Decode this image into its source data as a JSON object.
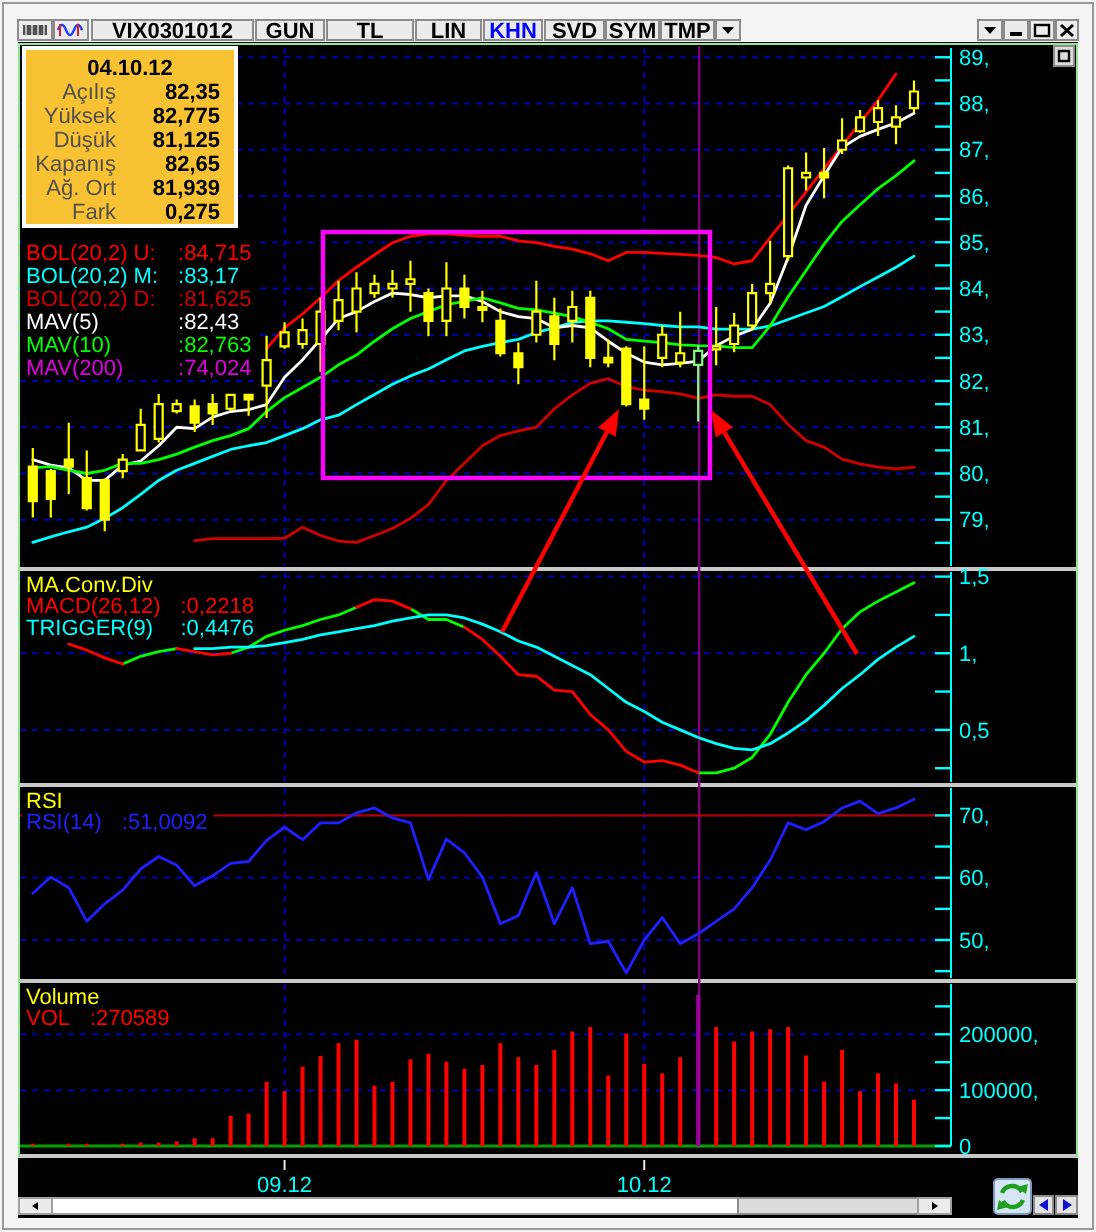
{
  "chart_data": [
    {
      "type": "candlestick",
      "title": "VIX0301012",
      "categories": [
        null,
        null,
        null,
        null,
        null,
        null,
        null,
        null,
        null,
        null,
        null,
        null,
        null,
        null,
        "09.12",
        null,
        null,
        null,
        null,
        null,
        null,
        null,
        null,
        null,
        null,
        null,
        null,
        null,
        null,
        null,
        null,
        null,
        null,
        null,
        "10.12",
        null,
        null,
        null,
        null,
        null,
        null,
        null,
        null,
        null,
        null,
        null,
        null,
        null,
        null,
        null
      ],
      "ylim": [
        78,
        89.2
      ],
      "yticks": [
        {
          "value": 78.5,
          "label": null
        },
        {
          "value": 79,
          "label": "79,"
        },
        {
          "value": 79.5,
          "label": null
        },
        {
          "value": 80,
          "label": "80,"
        },
        {
          "value": 80.5,
          "label": null
        },
        {
          "value": 81,
          "label": "81,"
        },
        {
          "value": 81.5,
          "label": null
        },
        {
          "value": 82,
          "label": "82,"
        },
        {
          "value": 82.5,
          "label": null
        },
        {
          "value": 83,
          "label": "83,"
        },
        {
          "value": 83.5,
          "label": null
        },
        {
          "value": 84,
          "label": "84,"
        },
        {
          "value": 84.5,
          "label": null
        },
        {
          "value": 85,
          "label": "85,"
        },
        {
          "value": 85.5,
          "label": null
        },
        {
          "value": 86,
          "label": "86,"
        },
        {
          "value": 86.5,
          "label": null
        },
        {
          "value": 87,
          "label": "87,"
        },
        {
          "value": 87.5,
          "label": null
        },
        {
          "value": 88,
          "label": "88,"
        },
        {
          "value": 88.5,
          "label": null
        },
        {
          "value": 89,
          "label": "89,"
        }
      ],
      "tick_labels": "y",
      "grid": true,
      "legend": "top left",
      "ohlc": [
        [
          80.15,
          80.55,
          79.05,
          79.4
        ],
        [
          80.05,
          80.1,
          79.05,
          79.45
        ],
        [
          80.3,
          81.1,
          79.55,
          80.15
        ],
        [
          79.9,
          80.5,
          79.2,
          79.25
        ],
        [
          79.85,
          79.9,
          78.75,
          79.0
        ],
        [
          80.05,
          80.42,
          79.9,
          80.3
        ],
        [
          80.5,
          81.4,
          80.5,
          81.05
        ],
        [
          80.75,
          81.72,
          80.67,
          81.5
        ],
        [
          81.35,
          81.6,
          81.3,
          81.5
        ],
        [
          81.45,
          81.6,
          80.9,
          81.1
        ],
        [
          81.5,
          81.72,
          81.05,
          81.3
        ],
        [
          81.4,
          81.72,
          81.35,
          81.7
        ],
        [
          81.7,
          81.72,
          81.25,
          81.6
        ],
        [
          81.9,
          82.98,
          81.2,
          82.45
        ],
        [
          82.75,
          83.27,
          82.7,
          83.05
        ],
        [
          82.8,
          83.35,
          82.7,
          83.1
        ],
        [
          82.8,
          83.8,
          82.2,
          83.5
        ],
        [
          83.3,
          84.17,
          83.1,
          83.75
        ],
        [
          83.5,
          84.35,
          83.05,
          84.0
        ],
        [
          83.9,
          84.3,
          83.8,
          84.1
        ],
        [
          84.0,
          84.4,
          83.8,
          84.1
        ],
        [
          84.1,
          84.6,
          83.5,
          84.2
        ],
        [
          83.9,
          84.0,
          82.97,
          83.3
        ],
        [
          83.3,
          84.57,
          82.97,
          84.0
        ],
        [
          84.0,
          84.3,
          83.35,
          83.6
        ],
        [
          83.6,
          83.95,
          83.27,
          83.55
        ],
        [
          83.3,
          83.57,
          82.53,
          82.6
        ],
        [
          82.6,
          82.83,
          81.93,
          82.3
        ],
        [
          83.0,
          84.17,
          82.83,
          83.5
        ],
        [
          83.4,
          83.8,
          82.45,
          82.8
        ],
        [
          83.3,
          83.95,
          82.83,
          83.6
        ],
        [
          83.8,
          83.95,
          82.3,
          82.5
        ],
        [
          82.5,
          82.9,
          82.3,
          82.4
        ],
        [
          82.7,
          82.75,
          81.45,
          81.5
        ],
        [
          81.6,
          82.75,
          81.16,
          81.4
        ],
        [
          82.5,
          83.2,
          82.3,
          83.0
        ],
        [
          82.4,
          83.5,
          82.3,
          82.6
        ],
        [
          82.35,
          82.775,
          81.125,
          82.65
        ],
        [
          82.7,
          83.6,
          82.34,
          82.75
        ],
        [
          82.8,
          83.47,
          82.62,
          83.2
        ],
        [
          83.2,
          84.1,
          83.1,
          83.9
        ],
        [
          83.9,
          85.03,
          83.68,
          84.1
        ],
        [
          84.7,
          86.66,
          84.6,
          86.6
        ],
        [
          86.4,
          86.94,
          86.12,
          86.5
        ],
        [
          86.5,
          87.04,
          85.95,
          86.4
        ],
        [
          87.0,
          87.68,
          86.91,
          87.2
        ],
        [
          87.4,
          87.86,
          87.37,
          87.7
        ],
        [
          87.6,
          88.07,
          87.3,
          87.9
        ],
        [
          87.5,
          87.96,
          87.12,
          87.7
        ],
        [
          87.9,
          88.5,
          87.8,
          88.26
        ]
      ],
      "colors": [
        "#ffff00",
        "#ffff00",
        "#ffff00",
        "#ffff00",
        "#ffff00",
        "#ffff00",
        "#ffff00",
        "#ffff00",
        "#ffff00",
        "#ffff00",
        "#ffff00",
        "#ffff00",
        "#ffff00",
        "#ffff00",
        "#ffff00",
        "#ffff00",
        "#ffff00",
        "#ffff00",
        "#ffff00",
        "#ffff00",
        "#ffff00",
        "#ffff00",
        "#ffff00",
        "#ffff00",
        "#ffff00",
        "#ffff00",
        "#ffff00",
        "#ffff00",
        "#ffff00",
        "#ffff00",
        "#ffff00",
        "#ffff00",
        "#ffff00",
        "#ffff00",
        "#ffff00",
        "#ffff00",
        "#ffff00",
        "#80ff80",
        "#ffff00",
        "#ffff00",
        "#ffff00",
        "#ffff00",
        "#ffff00",
        "#ffff00",
        "#ffff00",
        "#ffff00",
        "#ffff00",
        "#ffff00",
        "#ffff00",
        "#ffff00"
      ],
      "series": [
        {
          "type": "line",
          "name": "BOL(20,2) U:",
          "color": "#ff0000",
          "values": [
            null,
            null,
            null,
            null,
            null,
            null,
            null,
            null,
            null,
            null,
            null,
            null,
            null,
            82.7,
            83.15,
            83.45,
            83.8,
            84.17,
            84.46,
            84.73,
            84.99,
            85.13,
            85.18,
            85.18,
            85.15,
            85.13,
            85.13,
            85.03,
            84.99,
            84.91,
            84.85,
            84.75,
            84.6,
            84.78,
            84.78,
            84.76,
            84.74,
            84.715,
            84.67,
            84.53,
            84.6,
            85.1,
            85.59,
            86.09,
            86.59,
            87.08,
            87.58,
            88.07,
            88.64,
            null
          ]
        },
        {
          "type": "line",
          "name": "BOL(20,2) M:",
          "color": "#00ffff",
          "values": [
            78.51,
            78.63,
            78.74,
            78.84,
            79.03,
            79.26,
            79.55,
            79.85,
            80.07,
            80.22,
            80.37,
            80.52,
            80.6,
            80.67,
            80.82,
            80.97,
            81.16,
            81.26,
            81.49,
            81.71,
            81.93,
            82.11,
            82.26,
            82.46,
            82.65,
            82.75,
            82.83,
            82.9,
            83.05,
            83.15,
            83.27,
            83.3,
            83.3,
            83.27,
            83.24,
            83.2,
            83.17,
            83.17,
            83.12,
            83.12,
            83.12,
            83.19,
            83.33,
            83.47,
            83.61,
            83.82,
            84.04,
            84.25,
            84.46,
            84.7
          ]
        },
        {
          "type": "line",
          "name": "BOL(20,2) D:",
          "color": "#d00000",
          "values": [
            null,
            null,
            null,
            null,
            null,
            null,
            null,
            null,
            null,
            78.55,
            78.59,
            78.59,
            78.59,
            78.59,
            78.6,
            78.84,
            78.66,
            78.54,
            78.51,
            78.66,
            78.81,
            79.03,
            79.33,
            79.85,
            80.22,
            80.6,
            80.82,
            80.92,
            81.0,
            81.4,
            81.7,
            81.95,
            82.05,
            81.88,
            81.8,
            81.77,
            81.72,
            81.625,
            81.7,
            81.67,
            81.67,
            81.49,
            81.06,
            80.71,
            80.57,
            80.31,
            80.21,
            80.14,
            80.1,
            80.14
          ]
        },
        {
          "type": "line",
          "name": "MAV(5)",
          "color": "#ffffff",
          "values": [
            80.3,
            80.18,
            80.12,
            79.85,
            79.85,
            80.18,
            80.27,
            80.6,
            81.0,
            80.97,
            81.22,
            81.34,
            81.38,
            81.49,
            82.08,
            82.46,
            82.9,
            83.35,
            83.5,
            83.72,
            83.9,
            83.87,
            83.8,
            83.84,
            83.84,
            83.72,
            83.5,
            83.39,
            83.35,
            83.15,
            83.2,
            83.15,
            82.86,
            82.6,
            82.41,
            82.35,
            82.38,
            82.43,
            82.76,
            82.97,
            83.12,
            83.68,
            84.67,
            85.8,
            86.44,
            87.05,
            87.29,
            87.44,
            87.58,
            87.79
          ]
        },
        {
          "type": "line",
          "name": "MAV(10)",
          "color": "#00ff00",
          "values": [
            80.12,
            80.15,
            80.07,
            80.0,
            80.07,
            80.22,
            80.22,
            80.3,
            80.42,
            80.57,
            80.71,
            80.82,
            80.97,
            81.34,
            81.64,
            81.86,
            82.08,
            82.35,
            82.56,
            82.86,
            83.13,
            83.35,
            83.5,
            83.65,
            83.72,
            83.8,
            83.69,
            83.57,
            83.54,
            83.47,
            83.39,
            83.27,
            83.13,
            82.9,
            82.86,
            82.83,
            82.78,
            82.763,
            82.76,
            82.72,
            82.72,
            83.19,
            83.82,
            84.39,
            84.96,
            85.45,
            85.81,
            86.16,
            86.44,
            86.76
          ]
        },
        {
          "type": "line",
          "name": "MAV(200)",
          "color": "#e000e0",
          "values": [
            null,
            null,
            null,
            null,
            null,
            null,
            null,
            null,
            null,
            null,
            null,
            null,
            null,
            null,
            null,
            null,
            null,
            null,
            null,
            null,
            null,
            null,
            null,
            null,
            null,
            null,
            null,
            null,
            null,
            null,
            null,
            null,
            null,
            null,
            null,
            null,
            null,
            null,
            null,
            null,
            null,
            null,
            null,
            null,
            null,
            null,
            null,
            null,
            null,
            null
          ]
        }
      ],
      "annotations": [
        "04.10.12",
        "Açılış",
        "82,35",
        "Yüksek",
        "82,775",
        "Düşük",
        "81,125",
        "Kapanış",
        "82,65",
        "Ağ. Ort",
        "81,939",
        "Fark",
        "0,275",
        ":84,715",
        ":83,17",
        ":81,625",
        ":82,43",
        ":82,763",
        ":74,024",
        "GUN",
        "TL",
        "LIN",
        "KHN",
        "SVD",
        "SYM",
        "TMP"
      ]
    },
    {
      "type": "line",
      "title": "MA.Conv.Div",
      "categories": [
        null,
        null,
        null,
        null,
        null,
        null,
        null,
        null,
        null,
        null,
        null,
        null,
        null,
        null,
        "09.12",
        null,
        null,
        null,
        null,
        null,
        null,
        null,
        null,
        null,
        null,
        null,
        null,
        null,
        null,
        null,
        null,
        null,
        null,
        null,
        "10.12",
        null,
        null,
        null,
        null,
        null,
        null,
        null,
        null,
        null,
        null,
        null,
        null,
        null,
        null,
        null
      ],
      "ylim": [
        0.16,
        1.53
      ],
      "yticks": [
        {
          "value": 0.25,
          "label": null
        },
        {
          "value": 0.5,
          "label": "0,5"
        },
        {
          "value": 0.75,
          "label": null
        },
        {
          "value": 1,
          "label": "1,"
        },
        {
          "value": 1.25,
          "label": null
        },
        {
          "value": 1.5,
          "label": "1,5"
        }
      ],
      "tick_labels": "y",
      "grid": true,
      "legend": "top left",
      "series": [
        {
          "color": "#00ff00",
          "values": [
            null,
            null,
            null,
            null,
            null,
            0.93,
            0.98,
            1.01,
            1.03,
            null,
            null,
            1.0,
            1.04,
            1.11,
            1.15,
            1.18,
            1.22,
            1.25,
            1.3,
            null,
            null,
            1.29,
            1.22,
            1.22,
            1.17,
            null,
            null,
            null,
            null,
            null,
            null,
            null,
            null,
            null,
            null,
            null,
            null,
            0.22,
            0.22,
            0.25,
            0.32,
            0.47,
            0.68,
            0.86,
            1.0,
            1.16,
            1.27,
            1.34,
            1.4,
            1.46
          ]
        },
        {
          "name": "MACD(26,12)",
          "color": "#ff0000",
          "values": [
            null,
            null,
            1.06,
            1.02,
            0.97,
            0.93,
            null,
            null,
            1.03,
            1.01,
            0.99,
            1.0,
            null,
            null,
            null,
            null,
            null,
            null,
            1.3,
            1.35,
            1.34,
            1.29,
            null,
            null,
            1.17,
            1.09,
            0.98,
            0.86,
            0.85,
            0.76,
            0.75,
            0.6,
            0.5,
            0.36,
            0.29,
            0.3,
            0.27,
            0.22,
            null,
            null,
            null,
            null,
            null,
            null,
            null,
            null,
            null,
            null,
            null,
            null
          ]
        },
        {
          "name": "TRIGGER(9)",
          "color": "#00ffff",
          "values": [
            null,
            null,
            null,
            null,
            null,
            null,
            null,
            null,
            null,
            1.03,
            1.03,
            1.04,
            1.04,
            1.05,
            1.07,
            1.09,
            1.12,
            1.14,
            1.16,
            1.18,
            1.21,
            1.23,
            1.25,
            1.25,
            1.23,
            1.19,
            1.14,
            1.08,
            1.04,
            0.98,
            0.92,
            0.86,
            0.77,
            0.68,
            0.62,
            0.55,
            0.5,
            0.45,
            0.41,
            0.38,
            0.37,
            0.41,
            0.48,
            0.56,
            0.66,
            0.77,
            0.86,
            0.96,
            1.04,
            1.11
          ]
        }
      ],
      "annotations": [
        ":0,2218",
        ":0,4476"
      ]
    },
    {
      "type": "line",
      "title": "RSI",
      "categories": [
        null,
        null,
        null,
        null,
        null,
        null,
        null,
        null,
        null,
        null,
        null,
        null,
        null,
        null,
        "09.12",
        null,
        null,
        null,
        null,
        null,
        null,
        null,
        null,
        null,
        null,
        null,
        null,
        null,
        null,
        null,
        null,
        null,
        null,
        null,
        "10.12",
        null,
        null,
        null,
        null,
        null,
        null,
        null,
        null,
        null,
        null,
        null,
        null,
        null,
        null,
        null
      ],
      "ylim": [
        43.9,
        74.4
      ],
      "yticks": [
        {
          "value": 45,
          "label": null
        },
        {
          "value": 50,
          "label": "50,"
        },
        {
          "value": 55,
          "label": null
        },
        {
          "value": 60,
          "label": "60,"
        },
        {
          "value": 65,
          "label": null
        },
        {
          "value": 70,
          "label": "70,"
        }
      ],
      "tick_labels": "y",
      "grid": true,
      "legend": "top left",
      "series": [
        {
          "name": "RSI(14)",
          "color": "#2020ff",
          "values": [
            57.5,
            60.1,
            58.4,
            53.0,
            55.8,
            58.0,
            61.4,
            63.4,
            62.0,
            58.7,
            60.3,
            62.3,
            62.6,
            66.0,
            68.1,
            66.1,
            68.8,
            68.8,
            70.4,
            71.2,
            69.6,
            68.8,
            59.7,
            66.2,
            64.0,
            60.1,
            52.6,
            53.9,
            60.8,
            52.6,
            58.4,
            49.4,
            49.8,
            44.7,
            50.0,
            53.6,
            49.4,
            51.0,
            53.0,
            55.0,
            58.4,
            62.8,
            68.8,
            67.7,
            69.0,
            71.2,
            72.3,
            70.3,
            71.2,
            72.6
          ]
        }
      ],
      "ref_lines": [
        {
          "axis": "y",
          "value": 70,
          "color": "#b00000"
        }
      ],
      "annotations": [
        ":51,0092"
      ]
    },
    {
      "type": "bar",
      "title": "Volume",
      "categories": [
        null,
        null,
        null,
        null,
        null,
        null,
        null,
        null,
        null,
        null,
        null,
        null,
        null,
        null,
        "09.12",
        null,
        null,
        null,
        null,
        null,
        null,
        null,
        null,
        null,
        null,
        null,
        null,
        null,
        null,
        null,
        null,
        null,
        null,
        null,
        "10.12",
        null,
        null,
        null,
        null,
        null,
        null,
        null,
        null,
        null,
        null,
        null,
        null,
        null,
        null,
        null
      ],
      "ylim": [
        0,
        290000
      ],
      "yticks": [
        0,
        {
          "value": 50000,
          "label": null
        },
        {
          "value": 100000,
          "label": "100000,"
        },
        {
          "value": 150000,
          "label": null
        },
        {
          "value": 200000,
          "label": "200000,"
        },
        {
          "value": 250000,
          "label": null
        }
      ],
      "grid": true,
      "legend": "top left",
      "series": [
        {
          "name": "VOL",
          "color": "#ff0000",
          "values": [
            4000,
            null,
            4000,
            4000,
            null,
            4000,
            6000,
            6000,
            8000,
            14000,
            14000,
            54000,
            58000,
            115000,
            98000,
            142000,
            161000,
            184000,
            190000,
            108000,
            115000,
            155000,
            165000,
            151000,
            138000,
            145000,
            184000,
            159000,
            145000,
            172000,
            205000,
            213000,
            126000,
            201000,
            147000,
            130000,
            159000,
            270589,
            213000,
            187000,
            205000,
            209000,
            213000,
            162000,
            115000,
            172000,
            98000,
            130000,
            112000,
            83000
          ],
          "colors": [
            "#ff0000",
            "#ff0000",
            "#ff0000",
            "#ff0000",
            "#ff0000",
            "#ff0000",
            "#ff0000",
            "#ff0000",
            "#ff0000",
            "#ff0000",
            "#ff0000",
            "#ff0000",
            "#ff0000",
            "#ff0000",
            "#ff0000",
            "#ff0000",
            "#ff0000",
            "#ff0000",
            "#ff0000",
            "#ff0000",
            "#ff0000",
            "#ff0000",
            "#ff0000",
            "#ff0000",
            "#ff0000",
            "#ff0000",
            "#ff0000",
            "#ff0000",
            "#ff0000",
            "#ff0000",
            "#ff0000",
            "#ff0000",
            "#ff0000",
            "#ff0000",
            "#ff0000",
            "#ff0000",
            "#ff0000",
            "#a000a0",
            "#ff0000",
            "#ff0000",
            "#ff0000",
            "#ff0000",
            "#ff0000",
            "#ff0000",
            "#ff0000",
            "#ff0000",
            "#ff0000",
            "#ff0000",
            "#ff0000",
            "#ff0000"
          ]
        }
      ],
      "annotations": [
        ":270589"
      ]
    }
  ]
}
